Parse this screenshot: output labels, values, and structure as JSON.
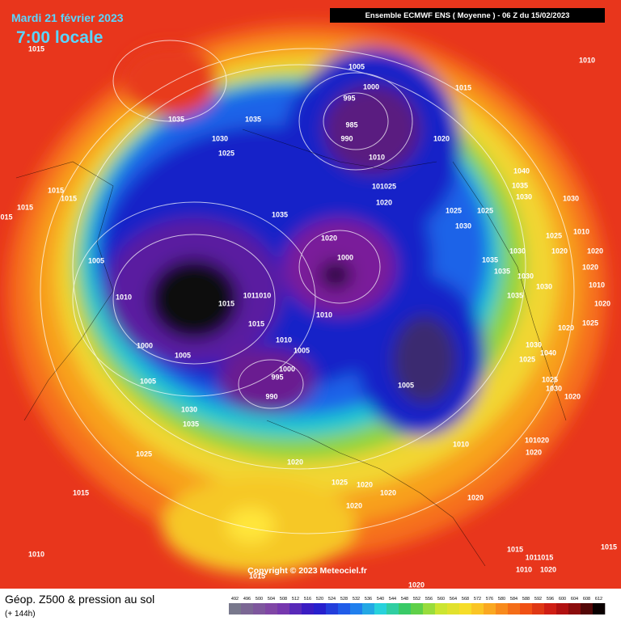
{
  "header": {
    "date": "Mardi 21 février 2023",
    "time": "7:00 locale",
    "model": "Ensemble ECMWF ENS  ( Moyenne )  - 06 Z du 15/02/2023"
  },
  "isobar_labels": [
    "1015",
    "1035",
    "1030",
    "1035",
    "1025",
    "1005",
    "1000",
    "995",
    "985",
    "990",
    "1010",
    "1015",
    "1010",
    "1020",
    "1040",
    "1035",
    "1030",
    "1030",
    "1015",
    "1015",
    "1015",
    "015",
    "1025",
    "1030",
    "1025",
    "101025",
    "1020",
    "1035",
    "1025",
    "1010",
    "1020",
    "1000",
    "1005",
    "1035",
    "1030",
    "1020",
    "1020",
    "1035",
    "1030",
    "1020",
    "1030",
    "1010",
    "1010",
    "1015",
    "1011010",
    "1035",
    "1020",
    "1010",
    "1015",
    "1020",
    "1025",
    "1000",
    "1010",
    "1005",
    "1005",
    "1030",
    "1040",
    "1025",
    "1000",
    "995",
    "1005",
    "1005",
    "1025",
    "1030",
    "990",
    "1020",
    "1030",
    "1035",
    "1010",
    "101020",
    "1025",
    "1020",
    "1020",
    "1015",
    "1025",
    "1020",
    "1020",
    "1020",
    "1020",
    "1010",
    "1015",
    "1011015",
    "1015",
    "1010",
    "1020",
    "1015",
    "1020"
  ],
  "copyright": "Copyright © 2023 Meteociel.fr",
  "legend": {
    "title": "Géop. Z500 & pression au sol",
    "lead": "(+ 144h)",
    "scale": [
      492,
      496,
      500,
      504,
      508,
      512,
      516,
      520,
      524,
      528,
      532,
      536,
      540,
      544,
      548,
      552,
      556,
      560,
      564,
      568,
      572,
      576,
      580,
      584,
      588,
      592,
      596,
      600,
      604,
      608,
      612
    ]
  }
}
